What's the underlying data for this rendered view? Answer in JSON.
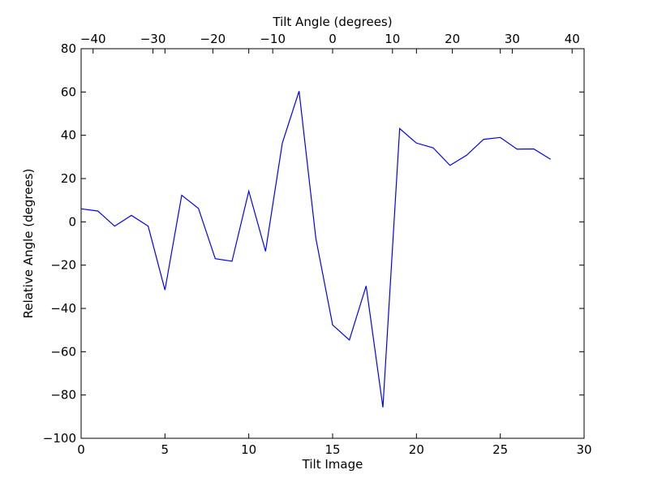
{
  "chart_data": {
    "type": "line",
    "xlabel": "Tilt Image",
    "ylabel": "Relative Angle (degrees)",
    "top_xlabel": "Tilt Angle (degrees)",
    "xlim": [
      0,
      30
    ],
    "ylim": [
      -100,
      80
    ],
    "top_xlim": [
      -42,
      42
    ],
    "x_ticks": [
      0,
      5,
      10,
      15,
      20,
      25,
      30
    ],
    "y_ticks": [
      80,
      60,
      40,
      20,
      0,
      -20,
      -40,
      -60,
      -80,
      -100
    ],
    "top_x_ticks": [
      -40,
      -30,
      -20,
      -10,
      0,
      10,
      20,
      30,
      40
    ],
    "grid": false,
    "line_color": "#0000ff",
    "series": [
      {
        "x": [
          0,
          1,
          2,
          3,
          4,
          5,
          6,
          7,
          8,
          9,
          10,
          11,
          12,
          13,
          14,
          15,
          16,
          17,
          18,
          19,
          20,
          21,
          22,
          23,
          24,
          25,
          26,
          27,
          28
        ],
        "values": [
          6,
          5,
          -2,
          3,
          -2,
          -31.5,
          12.3,
          6.2,
          -17,
          -18.2,
          14.2,
          -13.6,
          36.4,
          60.4,
          -7.6,
          -47.6,
          -54.6,
          -29.6,
          -85.7,
          43.1,
          36.4,
          34.2,
          26.1,
          30.8,
          38.1,
          39,
          33.6,
          33.7,
          28.9
        ]
      }
    ]
  }
}
